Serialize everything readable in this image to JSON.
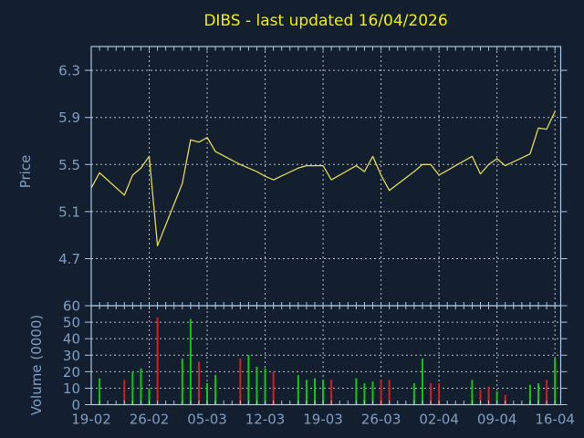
{
  "window_title": "DIBS - last updated 16/04/2026",
  "colors": {
    "background": "#131f2e",
    "axis": "#a9c7e6",
    "tick_label": "#7e9ec4",
    "title": "#f0ef00",
    "price_line": "#e0da52",
    "grid": "#b6bec6",
    "volume_up": "#0ec80e",
    "volume_down": "#d51f1f"
  },
  "chart_data": [
    {
      "type": "line",
      "title": "DIBS - last updated 16/04/2026",
      "ylabel": "Price",
      "series_name": "price",
      "x_days": [
        0,
        1,
        4,
        5,
        6,
        7,
        8,
        11,
        12,
        13,
        14,
        15,
        18,
        19,
        20,
        21,
        22,
        25,
        26,
        27,
        28,
        29,
        32,
        33,
        34,
        35,
        36,
        39,
        40,
        41,
        42,
        46,
        47,
        48,
        49,
        50,
        53,
        54,
        55,
        56
      ],
      "values": [
        5.3,
        5.43,
        5.24,
        5.41,
        5.47,
        5.57,
        4.81,
        5.34,
        5.71,
        5.69,
        5.73,
        5.61,
        5.5,
        5.47,
        5.44,
        5.4,
        5.37,
        5.47,
        5.49,
        5.49,
        5.49,
        5.37,
        5.49,
        5.44,
        5.57,
        5.41,
        5.28,
        5.44,
        5.5,
        5.5,
        5.41,
        5.57,
        5.42,
        5.5,
        5.55,
        5.49,
        5.59,
        5.81,
        5.8,
        5.95
      ],
      "yticks": [
        6.3,
        5.9,
        5.5,
        5.1,
        4.7
      ],
      "ylim": [
        4.3,
        6.5
      ],
      "xtick_labels": [
        "19-02",
        "26-02",
        "05-03",
        "12-03",
        "19-03",
        "26-03",
        "02-04",
        "09-04",
        "16-04"
      ],
      "xtick_days": [
        0,
        7,
        14,
        21,
        28,
        35,
        42,
        49,
        56
      ],
      "xlim_days": [
        0,
        56.7
      ],
      "grid": true,
      "legend": "none"
    },
    {
      "type": "bar",
      "title": "",
      "ylabel": "Volume (0000)",
      "series_name": "volume",
      "x_days": [
        1,
        4,
        5,
        6,
        7,
        8,
        11,
        12,
        13,
        14,
        15,
        18,
        19,
        20,
        21,
        22,
        25,
        26,
        27,
        28,
        29,
        32,
        33,
        34,
        35,
        36,
        39,
        40,
        41,
        42,
        46,
        47,
        48,
        49,
        50,
        53,
        54,
        55,
        56
      ],
      "values": [
        16,
        15,
        20,
        22,
        10,
        53,
        28,
        52,
        26,
        13,
        18,
        28,
        30,
        23,
        22,
        20,
        18,
        15,
        16,
        15,
        15,
        16,
        13,
        14,
        15,
        15,
        13,
        28,
        13,
        13,
        15,
        9,
        11,
        8,
        6,
        12,
        13,
        15,
        28
      ],
      "directions": [
        "up",
        "down",
        "up",
        "up",
        "up",
        "down",
        "up",
        "up",
        "down",
        "up",
        "up",
        "down",
        "up",
        "up",
        "up",
        "down",
        "up",
        "up",
        "up",
        "up",
        "down",
        "up",
        "up",
        "up",
        "down",
        "down",
        "up",
        "up",
        "down",
        "down",
        "up",
        "down",
        "down",
        "up",
        "down",
        "up",
        "up",
        "down",
        "up"
      ],
      "yticks": [
        60,
        50,
        40,
        30,
        20,
        10,
        0
      ],
      "ylim": [
        0,
        60
      ],
      "xtick_labels": [
        "19-02",
        "26-02",
        "05-03",
        "12-03",
        "19-03",
        "26-03",
        "02-04",
        "09-04",
        "16-04"
      ],
      "xtick_days": [
        0,
        7,
        14,
        21,
        28,
        35,
        42,
        49,
        56
      ],
      "grid": true,
      "legend": "none"
    }
  ]
}
